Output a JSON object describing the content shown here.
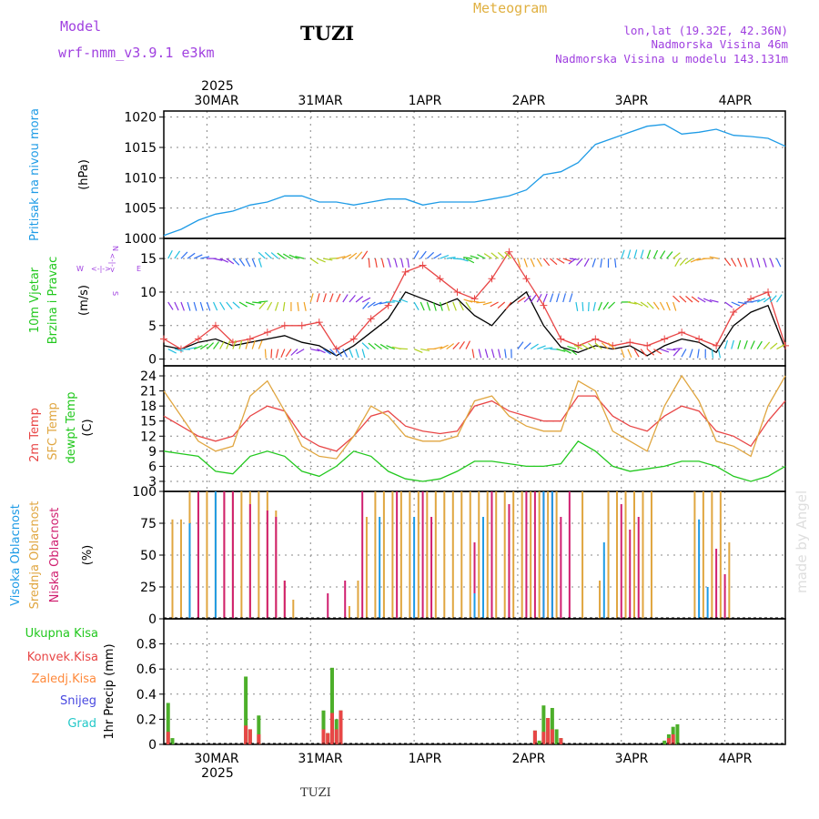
{
  "header": {
    "model_label": "Model",
    "model_name": "wrf-nmm_v3.9.1 e3km",
    "station": "TUZI",
    "meteogram_title": "Meteogram",
    "coords": "lon,lat (19.32E, 42.36N)",
    "elevation": "Nadmorska Visina 46m",
    "model_elevation": "Nadmorska Visina u modelu 143.131m",
    "footer_station": "TUZI",
    "watermark": "made by Angel"
  },
  "time_axis": {
    "year_top": "2025",
    "year_bottom": "2025",
    "day_labels": [
      "30MAR",
      "31MAR",
      "1APR",
      "2APR",
      "3APR",
      "4APR"
    ],
    "x_start_hours": -10,
    "x_end_hours": 134
  },
  "colors": {
    "pressure": "#1e9be6",
    "temp2m": "#e84646",
    "sfc": "#e0a640",
    "dewpt": "#22c81e",
    "wind_speed": "#000000",
    "gust": "#e84646",
    "high_cloud": "#1e9be6",
    "mid_cloud": "#e0a640",
    "low_cloud": "#d02070",
    "precip_total": "#4caf2a",
    "precip_conv": "#e84646",
    "precip_frozen": "#ff8a3c",
    "snow": "#4848e0",
    "hail": "#22c8c8",
    "compass": "#a040e0"
  },
  "chart_data": [
    {
      "type": "line",
      "title": "Pritisak na nivou mora",
      "ylabel": "(hPa)",
      "ylim": [
        1000,
        1021
      ],
      "yticks": [
        1000,
        1005,
        1010,
        1015,
        1020
      ],
      "series": [
        {
          "name": "pressure",
          "x": [
            -10,
            -6,
            -2,
            2,
            6,
            10,
            14,
            18,
            22,
            26,
            30,
            34,
            38,
            42,
            46,
            50,
            54,
            58,
            62,
            66,
            70,
            74,
            78,
            82,
            86,
            90,
            94,
            98,
            102,
            106,
            110,
            114,
            118,
            122,
            126,
            130,
            134
          ],
          "values": [
            1000.5,
            1001.5,
            1003,
            1004,
            1004.5,
            1005.5,
            1006,
            1007,
            1007,
            1006,
            1006,
            1005.5,
            1006,
            1006.5,
            1006.5,
            1005.5,
            1006,
            1006,
            1006,
            1006.5,
            1007,
            1008,
            1010.5,
            1011,
            1012.5,
            1015.5,
            1016.5,
            1017.5,
            1018.5,
            1018.8,
            1017.2,
            1017.5,
            1018,
            1017,
            1016.8,
            1016.5,
            1015.2
          ]
        }
      ]
    },
    {
      "type": "line",
      "title": "10m Vjetar",
      "subtitle": "Brzina i Pravac",
      "ylabel": "(m/s)",
      "ylim": [
        -1,
        18
      ],
      "yticks": [
        0,
        5,
        10,
        15
      ],
      "compass": {
        "n": "N",
        "s": "S",
        "w": "W",
        "e": "E",
        "arrows": "<-|->"
      },
      "series": [
        {
          "name": "wind_speed",
          "x": [
            -10,
            -6,
            -2,
            2,
            6,
            10,
            14,
            18,
            22,
            26,
            30,
            34,
            38,
            42,
            46,
            50,
            54,
            58,
            62,
            66,
            70,
            74,
            78,
            82,
            86,
            90,
            94,
            98,
            102,
            106,
            110,
            114,
            118,
            122,
            126,
            130,
            134
          ],
          "values": [
            2,
            1.5,
            2.5,
            3,
            2,
            2.5,
            3,
            3.5,
            2.5,
            2,
            0.5,
            2,
            4,
            6,
            10,
            9,
            8,
            9,
            6.5,
            5,
            8,
            10,
            5,
            1.8,
            1,
            2,
            1.5,
            2,
            0.5,
            2,
            3,
            2.5,
            1,
            5,
            7,
            8,
            1.5
          ]
        },
        {
          "name": "gust",
          "x": [
            -10,
            -6,
            -2,
            2,
            6,
            10,
            14,
            18,
            22,
            26,
            30,
            34,
            38,
            42,
            46,
            50,
            54,
            58,
            62,
            66,
            70,
            74,
            78,
            82,
            86,
            90,
            94,
            98,
            102,
            106,
            110,
            114,
            118,
            122,
            126,
            130,
            134
          ],
          "values": [
            3,
            1.5,
            3,
            5,
            2.5,
            3,
            4,
            5,
            5,
            5.5,
            1.5,
            3,
            6,
            8,
            13,
            14,
            12,
            10,
            9,
            12,
            16,
            12,
            8,
            3,
            2,
            3,
            2,
            2.5,
            2,
            3,
            4,
            3,
            2,
            7,
            9,
            10,
            2
          ]
        }
      ]
    },
    {
      "type": "line",
      "title": "2m Temp",
      "ylabel": "(C)",
      "ylim": [
        1,
        26
      ],
      "yticks": [
        3,
        6,
        9,
        12,
        15,
        18,
        21,
        24
      ],
      "legend": [
        "2m Temp",
        "SFC Temp",
        "dewpt Temp"
      ],
      "series": [
        {
          "name": "temp2m",
          "x": [
            -10,
            -6,
            -2,
            2,
            6,
            10,
            14,
            18,
            22,
            26,
            30,
            34,
            38,
            42,
            46,
            50,
            54,
            58,
            62,
            66,
            70,
            74,
            78,
            82,
            86,
            90,
            94,
            98,
            102,
            106,
            110,
            114,
            118,
            122,
            126,
            130,
            134
          ],
          "values": [
            16,
            14,
            12,
            11,
            12,
            16,
            18,
            17,
            12,
            10,
            9,
            12,
            16,
            17,
            14,
            13,
            12.5,
            13,
            18,
            19,
            17,
            16,
            15,
            15,
            20,
            20,
            16,
            14,
            13,
            16,
            18,
            17,
            13,
            12,
            10,
            15,
            19
          ]
        },
        {
          "name": "sfc",
          "x": [
            -10,
            -6,
            -2,
            2,
            6,
            10,
            14,
            18,
            22,
            26,
            30,
            34,
            38,
            42,
            46,
            50,
            54,
            58,
            62,
            66,
            70,
            74,
            78,
            82,
            86,
            90,
            94,
            98,
            102,
            106,
            110,
            114,
            118,
            122,
            126,
            130,
            134
          ],
          "values": [
            21,
            16,
            11,
            9,
            10,
            20,
            23,
            17,
            10,
            8,
            7.5,
            12,
            18,
            16,
            12,
            11,
            11,
            12,
            19,
            20,
            16,
            14,
            13,
            13,
            23,
            21,
            13,
            11,
            9,
            18,
            24,
            19,
            11,
            10,
            8,
            18,
            24
          ]
        },
        {
          "name": "dewpt",
          "x": [
            -10,
            -6,
            -2,
            2,
            6,
            10,
            14,
            18,
            22,
            26,
            30,
            34,
            38,
            42,
            46,
            50,
            54,
            58,
            62,
            66,
            70,
            74,
            78,
            82,
            86,
            90,
            94,
            98,
            102,
            106,
            110,
            114,
            118,
            122,
            126,
            130,
            134
          ],
          "values": [
            9,
            8.5,
            8,
            5,
            4.5,
            8,
            9,
            8,
            5,
            4,
            6,
            9,
            8,
            5,
            3.5,
            3,
            3.5,
            5,
            7,
            7,
            6.5,
            6,
            6,
            6.5,
            11,
            9,
            6,
            5,
            5.5,
            6,
            7,
            7,
            6,
            4,
            3,
            4,
            6
          ]
        }
      ]
    },
    {
      "type": "bar",
      "title": "Oblacnost",
      "ylabel": "(%)",
      "ylim": [
        0,
        100
      ],
      "yticks": [
        0,
        25,
        50,
        75,
        100
      ],
      "legend": [
        "Visoka Oblacnost",
        "Srednja Oblacnost",
        "Niska Oblacnost"
      ],
      "series": [
        {
          "name": "mid_cloud",
          "x": [
            -8,
            -6,
            -4,
            -2,
            0,
            2,
            4,
            6,
            8,
            10,
            12,
            14,
            16,
            18,
            20,
            33,
            35,
            37,
            39,
            41,
            43,
            45,
            47,
            49,
            51,
            53,
            55,
            57,
            59,
            61,
            63,
            65,
            67,
            69,
            71,
            73,
            75,
            77,
            79,
            81,
            87,
            91,
            93,
            95,
            97,
            99,
            101,
            103,
            113,
            115,
            117,
            119,
            121
          ],
          "values": [
            78,
            78,
            100,
            100,
            100,
            100,
            100,
            100,
            100,
            100,
            100,
            100,
            85,
            30,
            15,
            10,
            30,
            80,
            100,
            100,
            100,
            100,
            100,
            100,
            100,
            100,
            100,
            100,
            100,
            100,
            100,
            100,
            100,
            100,
            100,
            100,
            100,
            100,
            100,
            100,
            100,
            30,
            100,
            100,
            100,
            100,
            100,
            100,
            100,
            100,
            100,
            100,
            60
          ]
        },
        {
          "name": "low_cloud",
          "x": [
            -2,
            4,
            6,
            10,
            14,
            16,
            18,
            28,
            32,
            36,
            44,
            50,
            52,
            62,
            66,
            70,
            74,
            76,
            78,
            80,
            82,
            84,
            96,
            98,
            100,
            118,
            120
          ],
          "values": [
            100,
            100,
            100,
            90,
            85,
            80,
            30,
            20,
            30,
            100,
            100,
            100,
            80,
            60,
            100,
            90,
            100,
            100,
            100,
            100,
            80,
            100,
            90,
            70,
            80,
            55,
            35
          ]
        },
        {
          "name": "high_cloud",
          "x": [
            -4,
            2,
            40,
            48,
            62,
            64,
            78,
            80,
            92,
            114,
            116
          ],
          "values": [
            75,
            100,
            80,
            80,
            20,
            80,
            100,
            100,
            60,
            78,
            25
          ]
        }
      ]
    },
    {
      "type": "bar",
      "title": "1hr Precip (mm)",
      "ylabel": "1hr Precip (mm)",
      "ylim": [
        0,
        1
      ],
      "yticks": [
        0,
        0.2,
        0.4,
        0.6,
        0.8
      ],
      "legend": [
        "Ukupna Kisa",
        "Konvek.Kisa",
        "Zaledj.Kisa",
        "Snijeg",
        "Grad"
      ],
      "series": [
        {
          "name": "total",
          "x": [
            -9,
            -8,
            9,
            10,
            12,
            27,
            28,
            29,
            30,
            31,
            76,
            77,
            78,
            79,
            80,
            81,
            82,
            106,
            107,
            108,
            109
          ],
          "values": [
            0.33,
            0.05,
            0.54,
            0.12,
            0.23,
            0.27,
            0.09,
            0.61,
            0.2,
            0.27,
            0.11,
            0.03,
            0.31,
            0.21,
            0.29,
            0.12,
            0.05,
            0.03,
            0.08,
            0.14,
            0.16
          ]
        },
        {
          "name": "convective",
          "x": [
            -9,
            9,
            10,
            12,
            27,
            28,
            29,
            30,
            31,
            76,
            78,
            79,
            80,
            82,
            107,
            108
          ],
          "values": [
            0.1,
            0.15,
            0.12,
            0.08,
            0.12,
            0.09,
            0.25,
            0.12,
            0.27,
            0.11,
            0.1,
            0.21,
            0.12,
            0.05,
            0.05,
            0.08
          ]
        }
      ]
    }
  ]
}
